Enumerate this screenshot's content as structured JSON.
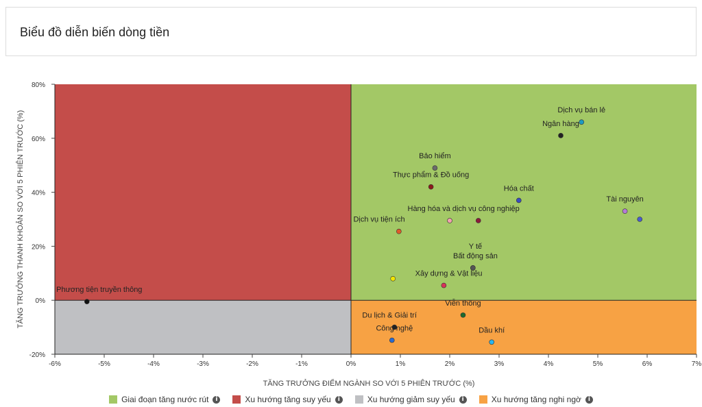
{
  "header": {
    "title": "Biểu đồ diễn biến dòng tiền"
  },
  "colors": {
    "green": "#a3c866",
    "red": "#c44d4a",
    "gray": "#bfc0c3",
    "orange": "#f7a244"
  },
  "legend": {
    "items": [
      {
        "label": "Giai đoạn tăng nước rút",
        "color": "#a3c866",
        "icon": "info-icon"
      },
      {
        "label": "Xu hướng tăng suy yếu",
        "color": "#c44d4a",
        "icon": "info-icon"
      },
      {
        "label": "Xu hướng giảm suy yếu",
        "color": "#bfc0c3",
        "icon": "info-icon"
      },
      {
        "label": "Xu hướng tăng nghi ngờ",
        "color": "#f7a244",
        "icon": "info-icon"
      }
    ]
  },
  "chart_data": {
    "type": "scatter",
    "xlabel": "TĂNG TRƯỞNG ĐIỂM NGÀNH SO VỚI 5 PHIÊN TRƯỚC (%)",
    "ylabel": "TĂNG TRƯỞNG THANH KHOẢN SO VỚI 5 PHIÊN TRƯỚC (%)",
    "xlim": [
      -6,
      7
    ],
    "ylim": [
      -20,
      80
    ],
    "x_ticks": [
      "-6%",
      "-5%",
      "-4%",
      "-3%",
      "-2%",
      "-1%",
      "0%",
      "1%",
      "2%",
      "3%",
      "4%",
      "5%",
      "6%",
      "7%"
    ],
    "y_ticks": [
      "-20%",
      "0%",
      "20%",
      "40%",
      "60%",
      "80%"
    ],
    "quadrants": [
      {
        "x": [
          0,
          7
        ],
        "y": [
          0,
          80
        ],
        "color": "#a3c866"
      },
      {
        "x": [
          -6,
          0
        ],
        "y": [
          0,
          80
        ],
        "color": "#c44d4a"
      },
      {
        "x": [
          -6,
          0
        ],
        "y": [
          -20,
          0
        ],
        "color": "#bfc0c3"
      },
      {
        "x": [
          0,
          7
        ],
        "y": [
          -20,
          0
        ],
        "color": "#f7a244"
      }
    ],
    "points": [
      {
        "label": "Dịch vụ bán lẻ",
        "x": 4.67,
        "y": 66.0,
        "color": "#1e9bc1",
        "label_dx": 0,
        "label_dy": -1
      },
      {
        "label": "Ngân hàng",
        "x": 4.25,
        "y": 61.0,
        "color": "#222222",
        "label_dx": 0,
        "label_dy": -1
      },
      {
        "label": "Bảo hiểm",
        "x": 1.7,
        "y": 49.0,
        "color": "#6b6b6b",
        "label_dx": 0,
        "label_dy": -1
      },
      {
        "label": "Thực phẩm & Đồ uống",
        "x": 1.62,
        "y": 42.0,
        "color": "#8b1a1a",
        "label_dx": 0,
        "label_dy": -1
      },
      {
        "label": "Hóa chất",
        "x": 3.4,
        "y": 37.0,
        "color": "#3b4cc0",
        "label_dx": 0,
        "label_dy": -1
      },
      {
        "label": "Tài nguyên",
        "x": 5.55,
        "y": 33.0,
        "color": "#b57ad6",
        "label_dx": 0,
        "label_dy": -1
      },
      {
        "label": "",
        "x": 5.85,
        "y": 30.0,
        "color": "#4a5ad0",
        "label_dx": 0,
        "label_dy": 0
      },
      {
        "label": "Hàng hóa và dịch vụ công nghiệp",
        "x": 2.58,
        "y": 29.5,
        "color": "#8b1a3a",
        "label_dx": -0.3,
        "label_dy": -1
      },
      {
        "label": "",
        "x": 2.0,
        "y": 29.5,
        "color": "#f0a0b0",
        "label_dx": 0,
        "label_dy": 0
      },
      {
        "label": "Dịch vụ tiện ích",
        "x": 0.97,
        "y": 25.5,
        "color": "#e05a2a",
        "label_dx": -0.4,
        "label_dy": -1
      },
      {
        "label": "Y tế",
        "x": 2.47,
        "y": 12.0,
        "color": "#555555",
        "label_dx": 0.05,
        "label_dy": -2
      },
      {
        "label": "Bất động sản",
        "x": 2.47,
        "y": 12.0,
        "color": "#555555",
        "label_dx": 0.05,
        "label_dy": -1
      },
      {
        "label": "",
        "x": 0.85,
        "y": 8.0,
        "color": "#f2e600",
        "label_dx": 0,
        "label_dy": 0
      },
      {
        "label": "Xây dựng & Vật liệu",
        "x": 1.88,
        "y": 5.5,
        "color": "#d8325a",
        "label_dx": 0.1,
        "label_dy": -1
      },
      {
        "label": "Phương tiện truyền thông",
        "x": -5.35,
        "y": -0.5,
        "color": "#111111",
        "label_dx": 0.25,
        "label_dy": -1
      },
      {
        "label": "Viễn thông",
        "x": 2.27,
        "y": -5.5,
        "color": "#1e6b2e",
        "label_dx": 0,
        "label_dy": -1
      },
      {
        "label": "Du lịch & Giải trí",
        "x": 0.88,
        "y": -10.0,
        "color": "#222222",
        "label_dx": -0.1,
        "label_dy": -1
      },
      {
        "label": "Công nghệ",
        "x": 0.83,
        "y": -14.8,
        "color": "#2a6bd0",
        "label_dx": 0.05,
        "label_dy": -1
      },
      {
        "label": "Dầu khí",
        "x": 2.85,
        "y": -15.5,
        "color": "#29b6f0",
        "label_dx": 0,
        "label_dy": -1
      }
    ]
  }
}
